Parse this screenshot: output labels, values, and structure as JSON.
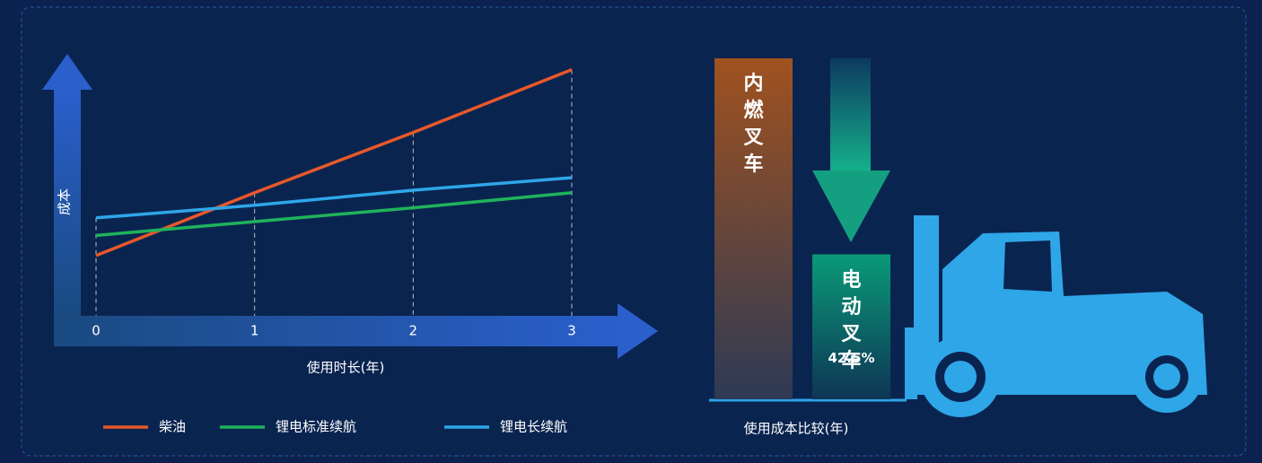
{
  "chart_data": [
    {
      "type": "line",
      "ylabel": "成本",
      "xlabel": "使用时长(年)",
      "x": [
        0,
        1,
        2,
        3
      ],
      "xlim": [
        0,
        3
      ],
      "xticks": [
        0,
        1,
        2,
        3
      ],
      "ylim": [
        0,
        100
      ],
      "grid": true,
      "legend": "bottom",
      "series": [
        {
          "name": "柴油",
          "color": "#e8582a",
          "values": [
            24,
            49,
            73,
            98
          ]
        },
        {
          "name": "锂电标准续航",
          "color": "#1fb35a",
          "values": [
            32,
            37.5,
            43,
            49
          ]
        },
        {
          "name": "锂电长续航",
          "color": "#2ea6e8",
          "values": [
            39,
            44,
            50,
            55
          ]
        }
      ]
    },
    {
      "type": "bar",
      "xlabel": "使用成本比较(年)",
      "categories": [
        "内燃叉车",
        "电动叉车"
      ],
      "values": [
        100,
        42.5
      ],
      "value_labels": [
        null,
        "42.5%"
      ],
      "ylim": [
        0,
        100
      ],
      "colors": [
        "#a0521f",
        "#0a9a78"
      ]
    }
  ]
}
